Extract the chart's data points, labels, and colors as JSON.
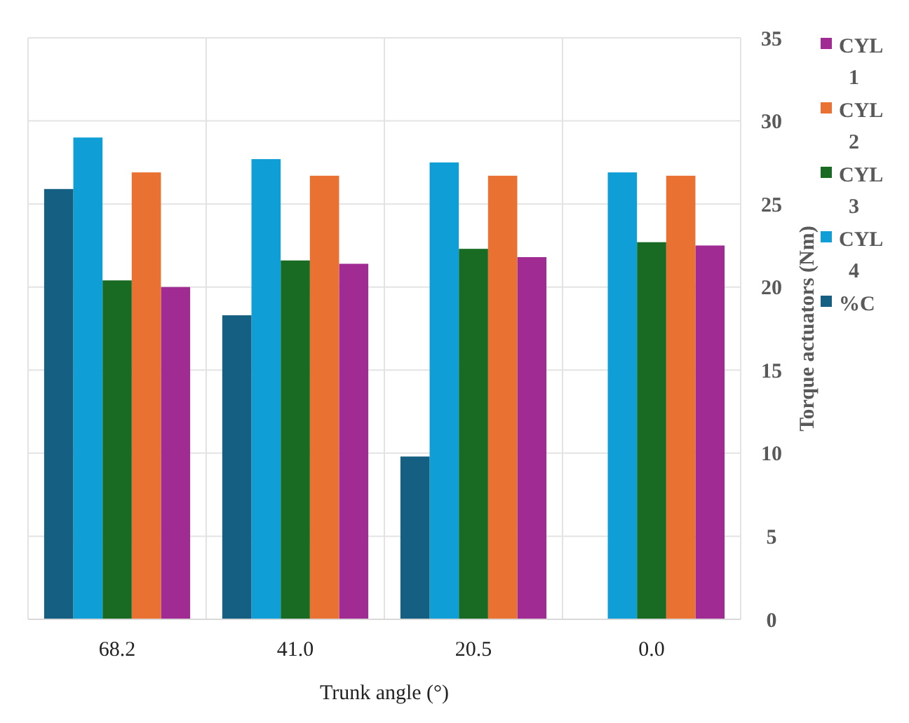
{
  "chart_data": {
    "type": "bar",
    "xlabel": "Trunk angle (°)",
    "ylabel": "Torque actuators  (Nm)",
    "categories": [
      "68.2",
      "41.0",
      "20.5",
      "0.0"
    ],
    "series": [
      {
        "name": "CYL 1",
        "color": "#a02b93",
        "values": [
          20.0,
          21.4,
          21.8,
          22.5
        ]
      },
      {
        "name": "CYL 2",
        "color": "#e97132",
        "values": [
          26.9,
          26.7,
          26.7,
          26.7
        ]
      },
      {
        "name": "CYL 3",
        "color": "#196b24",
        "values": [
          20.4,
          21.6,
          22.3,
          22.7
        ]
      },
      {
        "name": "CYL 4",
        "color": "#0f9ed5",
        "values": [
          29.0,
          27.7,
          27.5,
          26.9
        ]
      },
      {
        "name": "%C",
        "color": "#156082",
        "values": [
          25.9,
          18.3,
          9.8,
          null
        ]
      }
    ],
    "ylim": [
      0,
      35
    ],
    "yticks": [
      0,
      5,
      10,
      15,
      20,
      25,
      30,
      35
    ],
    "grid": true,
    "legend": "right"
  }
}
